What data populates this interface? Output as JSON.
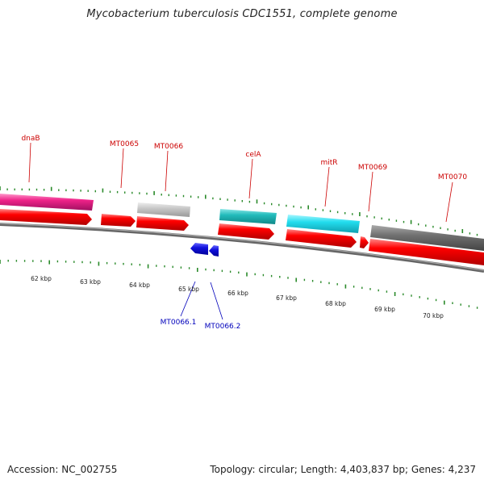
{
  "title": "Mycobacterium tuberculosis CDC1551, complete genome",
  "footer": {
    "accession": "Accession: NC_002755",
    "summary": "Topology: circular; Length: 4,403,837 bp; Genes: 4,237"
  },
  "genes": [
    {
      "label": "dnaB"
    },
    {
      "label": "MT0065"
    },
    {
      "label": "MT0066"
    },
    {
      "label": "celA"
    },
    {
      "label": "mitR"
    },
    {
      "label": "MT0069"
    },
    {
      "label": "MT0070"
    }
  ],
  "rnas": [
    {
      "label": "MT0066.1"
    },
    {
      "label": "MT0066.2"
    }
  ],
  "kbp_ticks": [
    "62 kbp",
    "63 kbp",
    "64 kbp",
    "65 kbp",
    "66 kbp",
    "67 kbp",
    "68 kbp",
    "69 kbp",
    "70 kbp"
  ],
  "colors": {
    "red": "#ff0000",
    "magenta": "#ee2288",
    "lightgray": "#c8c8c8",
    "teal": "#22bbbb",
    "cyan": "#22ddee",
    "darkgray": "#707070",
    "blue": "#1111dd",
    "tick_green": "#2a8a2a",
    "backbone": "#888888"
  }
}
